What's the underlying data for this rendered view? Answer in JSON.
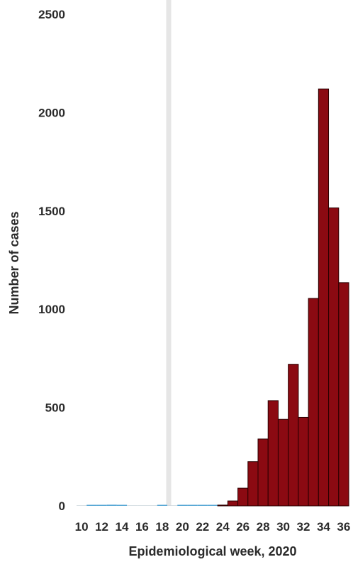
{
  "chart_data": {
    "type": "bar",
    "title": "",
    "xlabel": "Epidemiological week, 2020",
    "ylabel": "Number of cases",
    "ylim": [
      0,
      2500
    ],
    "yticks": [
      0,
      500,
      1000,
      1500,
      2000,
      2500
    ],
    "xtick_labels": [
      "10",
      "12",
      "14",
      "16",
      "18",
      "20",
      "22",
      "24",
      "26",
      "28",
      "30",
      "32",
      "34",
      "36"
    ],
    "grid": false,
    "bar_color": "#8b0a12",
    "low_bar_color": "#5aa9d6",
    "categories": [
      10,
      11,
      12,
      13,
      14,
      15,
      16,
      17,
      18,
      19,
      20,
      21,
      22,
      23,
      24,
      25,
      26,
      27,
      28,
      29,
      30,
      31,
      32,
      33,
      34,
      35,
      36
    ],
    "values": [
      0,
      2,
      3,
      6,
      4,
      0,
      0,
      0,
      1,
      0,
      2,
      4,
      3,
      3,
      4,
      25,
      90,
      225,
      340,
      535,
      440,
      720,
      450,
      1055,
      2120,
      1515,
      1135
    ]
  }
}
